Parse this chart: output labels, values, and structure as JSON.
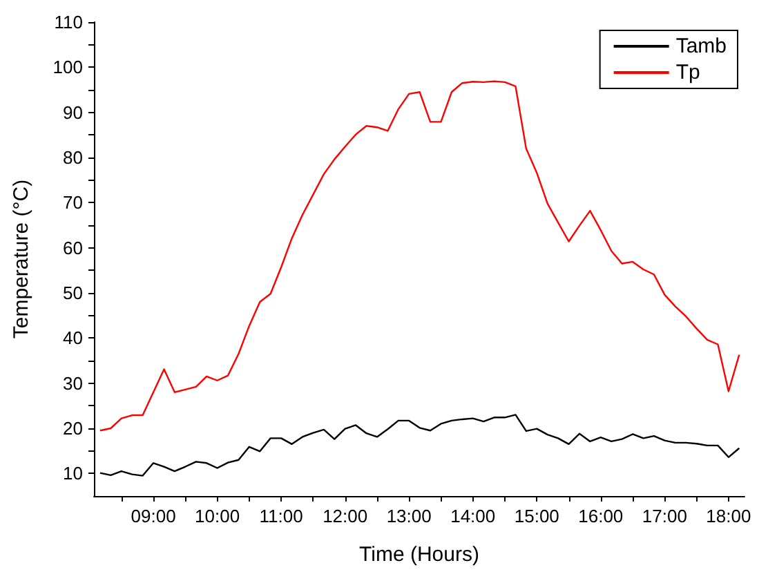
{
  "chart_data": {
    "type": "line",
    "xlabel": "Time (Hours)",
    "ylabel": "Temperature (°C)",
    "x": [
      8.167,
      8.333,
      8.5,
      8.667,
      8.833,
      9,
      9.167,
      9.333,
      9.5,
      9.667,
      9.833,
      10,
      10.167,
      10.333,
      10.5,
      10.667,
      10.833,
      11,
      11.167,
      11.333,
      11.5,
      11.667,
      11.833,
      12,
      12.167,
      12.333,
      12.5,
      12.667,
      12.833,
      13,
      13.167,
      13.333,
      13.5,
      13.667,
      13.833,
      14,
      14.167,
      14.333,
      14.5,
      14.667,
      14.833,
      15,
      15.167,
      15.333,
      15.5,
      15.667,
      15.833,
      16,
      16.167,
      16.333,
      16.5,
      16.667,
      16.833,
      17,
      17.167,
      17.333,
      17.5,
      17.667,
      17.833,
      18,
      18.167
    ],
    "series": [
      {
        "name": "Tamb",
        "color": "#000000",
        "values": [
          10.1,
          9.6,
          10.5,
          9.8,
          9.5,
          12.3,
          11.5,
          10.5,
          11.5,
          12.6,
          12.3,
          11.2,
          12.4,
          13.0,
          15.9,
          14.9,
          17.8,
          17.8,
          16.5,
          18.1,
          19.0,
          19.7,
          17.6,
          19.9,
          20.7,
          18.9,
          18.1,
          19.8,
          21.7,
          21.7,
          20.1,
          19.5,
          21.0,
          21.7,
          22.0,
          22.2,
          21.5,
          22.4,
          22.4,
          23.0,
          19.4,
          19.9,
          18.6,
          17.8,
          16.5,
          18.8,
          17.1,
          18.0,
          17.1,
          17.6,
          18.7,
          17.8,
          18.3,
          17.3,
          16.8,
          16.8,
          16.6,
          16.2,
          16.2,
          13.6,
          15.6
        ]
      },
      {
        "name": "Tp",
        "color": "#ff0000",
        "values": [
          19.5,
          20.0,
          22.2,
          22.9,
          22.9,
          28.0,
          33.1,
          28.0,
          28.6,
          29.2,
          31.5,
          30.6,
          31.7,
          36.5,
          42.7,
          48.0,
          49.8,
          55.7,
          62.1,
          67.3,
          71.8,
          76.3,
          79.6,
          82.4,
          85.1,
          87.0,
          86.7,
          85.9,
          90.7,
          94.1,
          94.5,
          87.9,
          87.9,
          94.5,
          96.5,
          96.8,
          96.7,
          96.9,
          96.7,
          95.8,
          82.0,
          76.6,
          69.8,
          65.6,
          61.4,
          64.9,
          68.2,
          63.9,
          59.3,
          56.5,
          56.9,
          55.2,
          54.1,
          49.6,
          47.0,
          44.8,
          42.1,
          39.6,
          38.6,
          28.2,
          36.3
        ]
      }
    ],
    "xlim": [
      8.07,
      18.25
    ],
    "xticks": [
      {
        "value": 8.5,
        "label": null
      },
      {
        "value": 9,
        "label": "09:00"
      },
      {
        "value": 9.5,
        "label": null
      },
      {
        "value": 10,
        "label": "10:00"
      },
      {
        "value": 10.5,
        "label": null
      },
      {
        "value": 11,
        "label": "11:00"
      },
      {
        "value": 11.5,
        "label": null
      },
      {
        "value": 12,
        "label": "12:00"
      },
      {
        "value": 12.5,
        "label": null
      },
      {
        "value": 13,
        "label": "13:00"
      },
      {
        "value": 13.5,
        "label": null
      },
      {
        "value": 14,
        "label": "14:00"
      },
      {
        "value": 14.5,
        "label": null
      },
      {
        "value": 15,
        "label": "15:00"
      },
      {
        "value": 15.5,
        "label": null
      },
      {
        "value": 16,
        "label": "16:00"
      },
      {
        "value": 16.5,
        "label": null
      },
      {
        "value": 17,
        "label": "17:00"
      },
      {
        "value": 17.5,
        "label": null
      },
      {
        "value": 18,
        "label": "18:00"
      }
    ],
    "ylim": [
      5,
      110
    ],
    "yticks": [
      10,
      {
        "value": 15,
        "label": null
      },
      20,
      {
        "value": 25,
        "label": null
      },
      30,
      {
        "value": 35,
        "label": null
      },
      40,
      {
        "value": 45,
        "label": null
      },
      50,
      {
        "value": 55,
        "label": null
      },
      60,
      {
        "value": 65,
        "label": null
      },
      70,
      {
        "value": 75,
        "label": null
      },
      80,
      {
        "value": 85,
        "label": null
      },
      90,
      {
        "value": 95,
        "label": null
      },
      100,
      {
        "value": 105,
        "label": null
      },
      110
    ],
    "grid": false,
    "legend": "top right",
    "marker": "none",
    "line_style": "solid"
  }
}
